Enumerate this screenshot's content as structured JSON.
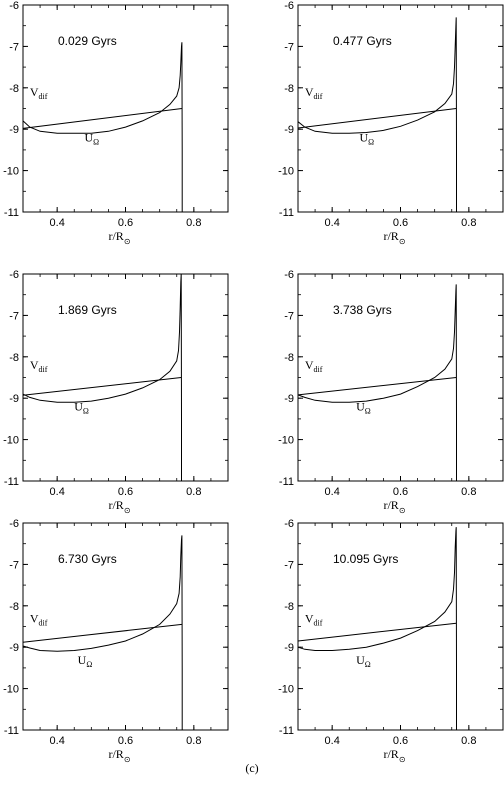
{
  "caption": "(c)",
  "labels": {
    "v_main": "V",
    "v_sub": "dif",
    "u_main": "U",
    "u_sub": "Ω",
    "xlabel_main": "r/R",
    "xlabel_sub": "⊙"
  },
  "chart_data": [
    {
      "type": "line",
      "title": "0.029 Gyrs",
      "xlabel": "r/R⊙",
      "xlim": [
        0.3,
        0.9
      ],
      "ylim": [
        -11,
        -6
      ],
      "xticks": [
        "0.4",
        "0.6",
        "0.8"
      ],
      "yticks": [
        "-6",
        "-7",
        "-8",
        "-9",
        "-10",
        "-11"
      ],
      "series": [
        {
          "name": "Vdif",
          "x": [
            0.3,
            0.765
          ],
          "y": [
            -8.98,
            -8.5
          ]
        },
        {
          "name": "UΩ",
          "x": [
            0.3,
            0.32,
            0.35,
            0.4,
            0.45,
            0.5,
            0.55,
            0.6,
            0.65,
            0.7,
            0.73,
            0.75,
            0.757,
            0.76,
            0.762,
            0.764,
            0.765,
            0.766,
            0.766
          ],
          "y": [
            -8.8,
            -8.95,
            -9.05,
            -9.1,
            -9.1,
            -9.1,
            -9.05,
            -8.95,
            -8.8,
            -8.6,
            -8.4,
            -8.2,
            -8.0,
            -7.7,
            -7.4,
            -7.0,
            -6.9,
            -9.5,
            -11
          ]
        }
      ]
    },
    {
      "type": "line",
      "title": "0.477 Gyrs",
      "xlabel": "r/R⊙",
      "xlim": [
        0.3,
        0.9
      ],
      "ylim": [
        -11,
        -6
      ],
      "xticks": [
        "0.4",
        "0.6",
        "0.8"
      ],
      "yticks": [
        "-6",
        "-7",
        "-8",
        "-9",
        "-10",
        "-11"
      ],
      "series": [
        {
          "name": "Vdif",
          "x": [
            0.3,
            0.763
          ],
          "y": [
            -8.97,
            -8.5
          ]
        },
        {
          "name": "UΩ",
          "x": [
            0.3,
            0.32,
            0.35,
            0.4,
            0.45,
            0.5,
            0.55,
            0.6,
            0.65,
            0.7,
            0.73,
            0.75,
            0.755,
            0.758,
            0.76,
            0.762,
            0.763,
            0.764,
            0.764
          ],
          "y": [
            -8.82,
            -8.95,
            -9.05,
            -9.1,
            -9.1,
            -9.08,
            -9.03,
            -8.93,
            -8.78,
            -8.58,
            -8.38,
            -8.15,
            -7.9,
            -7.5,
            -7.0,
            -6.5,
            -6.3,
            -9.5,
            -11
          ]
        }
      ]
    },
    {
      "type": "line",
      "title": "1.869 Gyrs",
      "xlabel": "r/R⊙",
      "xlim": [
        0.3,
        0.9
      ],
      "ylim": [
        -11,
        -6
      ],
      "xticks": [
        "0.4",
        "0.6",
        "0.8"
      ],
      "yticks": [
        "-6",
        "-7",
        "-8",
        "-9",
        "-10",
        "-11"
      ],
      "series": [
        {
          "name": "Vdif",
          "x": [
            0.3,
            0.763
          ],
          "y": [
            -8.93,
            -8.5
          ]
        },
        {
          "name": "UΩ",
          "x": [
            0.3,
            0.32,
            0.35,
            0.4,
            0.45,
            0.5,
            0.55,
            0.6,
            0.65,
            0.7,
            0.73,
            0.75,
            0.755,
            0.758,
            0.76,
            0.762,
            0.763,
            0.764,
            0.764
          ],
          "y": [
            -8.9,
            -8.98,
            -9.05,
            -9.1,
            -9.1,
            -9.07,
            -9.0,
            -8.9,
            -8.75,
            -8.55,
            -8.35,
            -8.1,
            -7.85,
            -7.4,
            -6.8,
            -6.2,
            -6.0,
            -9.5,
            -11
          ]
        }
      ]
    },
    {
      "type": "line",
      "title": "3.738 Gyrs",
      "xlabel": "r/R⊙",
      "xlim": [
        0.3,
        0.9
      ],
      "ylim": [
        -11,
        -6
      ],
      "xticks": [
        "0.4",
        "0.6",
        "0.8"
      ],
      "yticks": [
        "-6",
        "-7",
        "-8",
        "-9",
        "-10",
        "-11"
      ],
      "series": [
        {
          "name": "Vdif",
          "x": [
            0.3,
            0.763
          ],
          "y": [
            -8.92,
            -8.5
          ]
        },
        {
          "name": "UΩ",
          "x": [
            0.3,
            0.32,
            0.35,
            0.4,
            0.45,
            0.5,
            0.55,
            0.6,
            0.65,
            0.7,
            0.73,
            0.75,
            0.755,
            0.758,
            0.76,
            0.762,
            0.763,
            0.764,
            0.764
          ],
          "y": [
            -8.92,
            -8.98,
            -9.05,
            -9.1,
            -9.1,
            -9.07,
            -9.0,
            -8.9,
            -8.72,
            -8.5,
            -8.3,
            -8.05,
            -7.8,
            -7.4,
            -6.9,
            -6.4,
            -6.25,
            -9.5,
            -11
          ]
        }
      ]
    },
    {
      "type": "line",
      "title": "6.730 Gyrs",
      "xlabel": "r/R⊙",
      "xlim": [
        0.3,
        0.9
      ],
      "ylim": [
        -11,
        -6
      ],
      "xticks": [
        "0.4",
        "0.6",
        "0.8"
      ],
      "yticks": [
        "-6",
        "-7",
        "-8",
        "-9",
        "-10",
        "-11"
      ],
      "series": [
        {
          "name": "Vdif",
          "x": [
            0.3,
            0.765
          ],
          "y": [
            -8.88,
            -8.45
          ]
        },
        {
          "name": "UΩ",
          "x": [
            0.3,
            0.32,
            0.35,
            0.4,
            0.45,
            0.5,
            0.55,
            0.6,
            0.65,
            0.7,
            0.73,
            0.75,
            0.757,
            0.76,
            0.762,
            0.764,
            0.765,
            0.766,
            0.766
          ],
          "y": [
            -8.97,
            -9.02,
            -9.08,
            -9.1,
            -9.08,
            -9.03,
            -8.95,
            -8.85,
            -8.68,
            -8.45,
            -8.2,
            -7.95,
            -7.7,
            -7.3,
            -6.8,
            -6.4,
            -6.3,
            -9.5,
            -11
          ]
        }
      ]
    },
    {
      "type": "line",
      "title": "10.095 Gyrs",
      "xlabel": "r/R⊙",
      "xlim": [
        0.3,
        0.9
      ],
      "ylim": [
        -11,
        -6
      ],
      "xticks": [
        "0.4",
        "0.6",
        "0.8"
      ],
      "yticks": [
        "-6",
        "-7",
        "-8",
        "-9",
        "-10",
        "-11"
      ],
      "series": [
        {
          "name": "Vdif",
          "x": [
            0.3,
            0.763
          ],
          "y": [
            -8.85,
            -8.42
          ]
        },
        {
          "name": "UΩ",
          "x": [
            0.3,
            0.32,
            0.35,
            0.4,
            0.45,
            0.5,
            0.55,
            0.6,
            0.65,
            0.7,
            0.73,
            0.75,
            0.755,
            0.758,
            0.76,
            0.762,
            0.763,
            0.764,
            0.764
          ],
          "y": [
            -9.0,
            -9.05,
            -9.08,
            -9.08,
            -9.05,
            -9.0,
            -8.9,
            -8.78,
            -8.6,
            -8.38,
            -8.15,
            -7.9,
            -7.6,
            -7.2,
            -6.6,
            -6.2,
            -6.1,
            -9.5,
            -11
          ]
        }
      ]
    }
  ]
}
